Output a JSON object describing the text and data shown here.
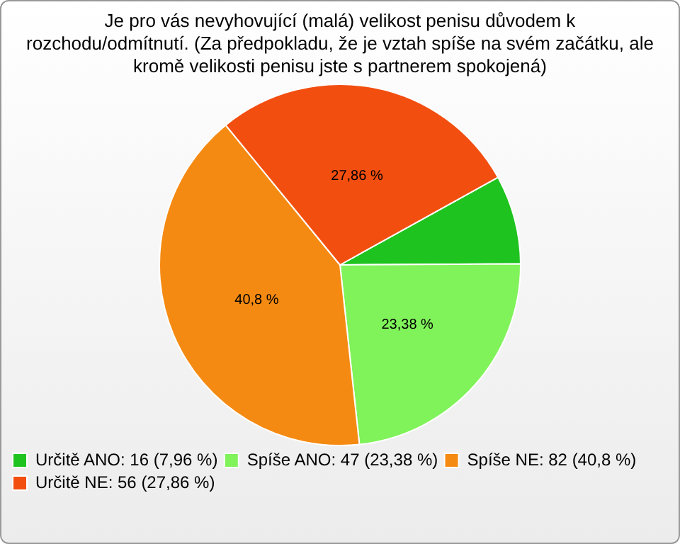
{
  "chart_data": {
    "type": "pie",
    "title": "Je pro vás nevyhovující (malá) velikost penisu důvodem k rozchodu/odmítnutí. (Za předpokladu, že je vztah spíše na svém začátku, ale kromě velikosti penisu jste s partnerem spokojená)",
    "categories": [
      "Určitě ANO: 16 (7,96 %)",
      "Spíše ANO: 47 (23,38 %)",
      "Spíše NE: 82 (40,8 %)",
      "Určitě NE: 56 (27,86 %)"
    ],
    "values": [
      7.96,
      23.38,
      40.8,
      27.86
    ],
    "value_labels": [
      null,
      "23,38 %",
      "40,8 %",
      "27,86 %"
    ],
    "colors": [
      "#1fc31f",
      "#80f25a",
      "#f58a12",
      "#f24e10"
    ],
    "legend": "bottom left"
  }
}
